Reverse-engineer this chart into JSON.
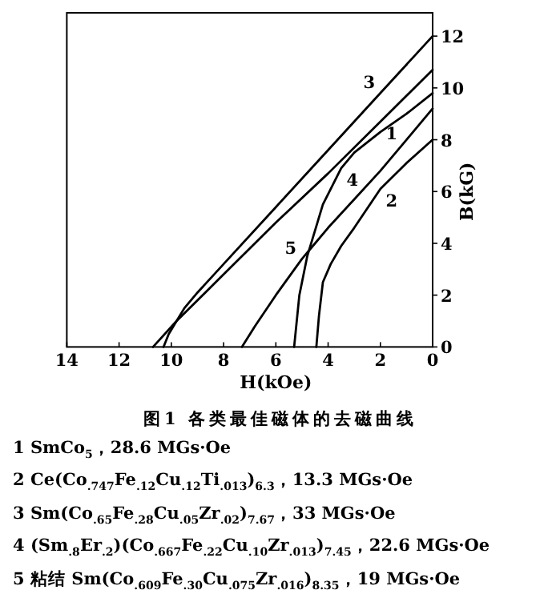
{
  "chart_data": {
    "type": "line",
    "title": "图1  各类最佳磁体的去磁曲线",
    "xlabel": "H(kOe)",
    "ylabel": "B(kG)",
    "xlim": [
      14,
      0
    ],
    "xticks": [
      14,
      12,
      10,
      8,
      6,
      4,
      2,
      0
    ],
    "ylim": [
      0,
      12.9
    ],
    "yticks": [
      0,
      2,
      4,
      6,
      8,
      10,
      12
    ],
    "grid": false,
    "marker": "none",
    "line_style": "solid",
    "series": [
      {
        "color": "#000000",
        "x": [
          0,
          2,
          4,
          6,
          8,
          9.8,
          10.7
        ],
        "values": [
          10.7,
          8.7,
          6.7,
          4.8,
          2.8,
          1.0,
          0
        ]
      },
      {
        "color": "#000000",
        "x": [
          0,
          1,
          2,
          3,
          3.5,
          3.9,
          4.2,
          4.35,
          4.45
        ],
        "values": [
          8.0,
          7.1,
          6.1,
          4.6,
          3.9,
          3.2,
          2.5,
          1.2,
          0
        ]
      },
      {
        "color": "#000000",
        "x": [
          0,
          2,
          4,
          6,
          8,
          9,
          9.5,
          9.8,
          10.1,
          10.3
        ],
        "values": [
          12.0,
          9.8,
          7.6,
          5.4,
          3.2,
          2.1,
          1.5,
          1.0,
          0.5,
          0
        ]
      },
      {
        "color": "#000000",
        "x": [
          0,
          1,
          2,
          3,
          3.5,
          4.2,
          4.5,
          4.8,
          5.1,
          5.3
        ],
        "values": [
          9.8,
          9.0,
          8.3,
          7.5,
          6.9,
          5.5,
          4.5,
          3.5,
          2.0,
          0
        ]
      },
      {
        "color": "#000000",
        "x": [
          0,
          1,
          2,
          3,
          4,
          4.5,
          5,
          6,
          6.8,
          7.3
        ],
        "values": [
          9.2,
          8.0,
          6.8,
          5.7,
          4.6,
          4.0,
          3.4,
          2.0,
          0.8,
          0
        ]
      }
    ],
    "annotations": [
      {
        "text": "3",
        "x": 2,
        "y": 9.8
      },
      {
        "text": "1",
        "x": 2,
        "y": 8.7
      },
      {
        "text": "2",
        "x": 2,
        "y": 6.1
      },
      {
        "text": "4",
        "x": 3.5,
        "y": 6.9
      },
      {
        "text": "5",
        "x": 5,
        "y": 3.4
      },
      "1 SmCo$_{5}$，28.6 MGs·Oe",
      "2 Ce(Co$_{.747}$Fe$_{.12}$Cu$_{.12}$Ti$_{.013}$)$_{6.3}$，13.3 MGs·Oe",
      "3 Sm(Co$_{.65}$Fe$_{.28}$Cu$_{.05}$Zr$_{.02}$)$_{7.67}$，33 MGs·Oe",
      "4 (Sm$_{.8}$Er$_{.2}$)(Co$_{.667}$Fe$_{.22}$Cu$_{.10}$Zr$_{.013}$)$_{7.45}$，22.6 MGs·Oe",
      "5 粘结 Sm(Co$_{.609}$Fe$_{.30}$Cu$_{.075}$Zr$_{.016}$)$_{8.35}$，19 MGs·Oe"
    ]
  }
}
